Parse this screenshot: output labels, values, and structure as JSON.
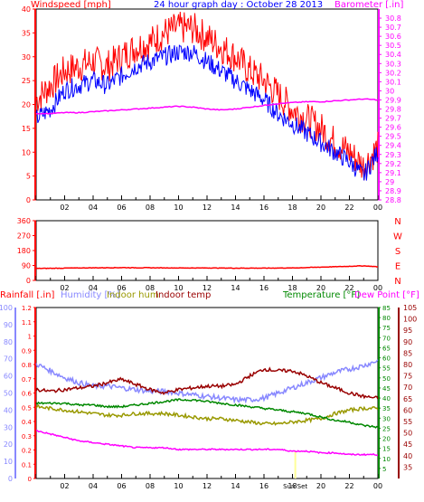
{
  "panel_top": {
    "title_left": "Windspeed [mph]",
    "title_center": "24 hour graph day : October 28 2013",
    "title_right": "Barometer [.in]",
    "left_color": "#ff0000",
    "center_color": "#0000ff",
    "right_color": "#ff00ff"
  },
  "panel_mid": {
    "right_labels": [
      "N",
      "W",
      "S",
      "E",
      "N"
    ],
    "color": "#ff0000"
  },
  "panel_bottom": {
    "rainfall": "Rainfall [.in]",
    "humidity": "Humidity [%]",
    "indoor_hum": "Indoor hum",
    "indoor_temp": "Indoor temp",
    "temperature": "Temperature [°F]",
    "dewpoint": "Dew Point [°F]",
    "colors": {
      "rainfall": "#ff0000",
      "humidity": "#8888ff",
      "indoor_hum": "#999900",
      "indoor_temp": "#990000",
      "temperature": "#008800",
      "dewpoint": "#ff00ff"
    },
    "event_label": "Sun Set"
  },
  "chart_data": [
    {
      "type": "line",
      "title": "24 hour graph day : October 28 2013",
      "xlabel": "",
      "ylabel": "Windspeed [mph]",
      "y2label": "Barometer [.in]",
      "x_ticks": [
        "02",
        "04",
        "06",
        "08",
        "10",
        "12",
        "14",
        "16",
        "18",
        "20",
        "22",
        "00"
      ],
      "ylim": [
        0,
        40
      ],
      "y_ticks": [
        "0",
        "5",
        "10",
        "15",
        "20",
        "25",
        "30",
        "35",
        "40"
      ],
      "y2lim": [
        28.8,
        30.9
      ],
      "y2_ticks": [
        "28.8",
        "28.9",
        "29",
        "29.1",
        "29.2",
        "29.3",
        "29.4",
        "29.5",
        "29.6",
        "29.7",
        "29.8",
        "29.9",
        "30",
        "30.1",
        "30.2",
        "30.3",
        "30.4",
        "30.5",
        "30.6",
        "30.7",
        "30.8"
      ],
      "hours": [
        0,
        1,
        2,
        3,
        4,
        5,
        6,
        7,
        8,
        9,
        10,
        11,
        12,
        13,
        14,
        15,
        16,
        17,
        18,
        19,
        20,
        21,
        22,
        23,
        24
      ],
      "series": [
        {
          "axis": "left",
          "color": "#ff0000",
          "values": [
            21,
            24,
            27,
            28,
            29,
            28,
            30,
            32,
            33,
            35,
            36,
            36,
            34,
            32,
            30,
            27,
            25,
            22,
            19,
            17,
            15,
            12,
            10,
            7,
            11
          ]
        },
        {
          "axis": "left",
          "color": "#0000ff",
          "values": [
            17,
            19,
            23,
            24,
            25,
            24,
            26,
            28,
            29,
            30,
            31,
            31,
            29,
            27,
            25,
            23,
            21,
            18,
            16,
            14,
            12,
            10,
            8,
            5,
            10
          ]
        },
        {
          "axis": "right",
          "color": "#ff00ff",
          "values": [
            29.75,
            29.75,
            29.76,
            29.76,
            29.77,
            29.78,
            29.79,
            29.8,
            29.81,
            29.82,
            29.83,
            29.82,
            29.8,
            29.79,
            29.8,
            29.82,
            29.84,
            29.86,
            29.87,
            29.88,
            29.88,
            29.89,
            29.9,
            29.91,
            29.9
          ]
        }
      ]
    },
    {
      "type": "line",
      "ylabel": "",
      "x_ticks": [
        "02",
        "04",
        "06",
        "08",
        "10",
        "12",
        "14",
        "16",
        "18",
        "20",
        "22",
        "00"
      ],
      "ylim": [
        0,
        360
      ],
      "y_ticks": [
        "0",
        "90",
        "180",
        "270",
        "360"
      ],
      "series": [
        {
          "color": "#ff0000",
          "hours": [
            0,
            2,
            4,
            6,
            8,
            10,
            12,
            14,
            16,
            18,
            20,
            22,
            23,
            24
          ],
          "values": [
            72,
            74,
            76,
            77,
            76,
            75,
            75,
            74,
            74,
            75,
            80,
            85,
            88,
            82
          ]
        }
      ]
    },
    {
      "type": "line",
      "x_ticks": [
        "02",
        "04",
        "06",
        "08",
        "10",
        "12",
        "14",
        "16",
        "18",
        "20",
        "22",
        "00"
      ],
      "x_event_label": "Sun Set",
      "rain_axis": {
        "ylim": [
          0,
          1.2
        ],
        "ticks": [
          "0",
          "0.1",
          "0.2",
          "0.3",
          "0.4",
          "0.5",
          "0.6",
          "0.7",
          "0.8",
          "0.9",
          "1",
          "1.1",
          "1.2"
        ]
      },
      "humidity_axis": {
        "ylim": [
          0,
          100
        ],
        "ticks": [
          "0",
          "10",
          "20",
          "30",
          "40",
          "50",
          "60",
          "70",
          "80",
          "90",
          "100"
        ]
      },
      "temperature_axis": {
        "ylim": [
          0,
          85
        ],
        "ticks": [
          "5",
          "10",
          "15",
          "20",
          "25",
          "30",
          "35",
          "40",
          "45",
          "50",
          "55",
          "60",
          "65",
          "70",
          "75",
          "80",
          "85"
        ]
      },
      "dewpoint_axis": {
        "ylim": [
          30,
          105
        ],
        "ticks": [
          "35",
          "40",
          "45",
          "50",
          "55",
          "60",
          "65",
          "70",
          "75",
          "80",
          "85",
          "90",
          "95",
          "100",
          "105"
        ]
      },
      "hours": [
        0,
        1,
        2,
        3,
        4,
        5,
        6,
        7,
        8,
        9,
        10,
        11,
        12,
        13,
        14,
        15,
        16,
        17,
        18,
        19,
        20,
        21,
        22,
        23,
        24
      ],
      "series": [
        {
          "name": "Humidity [%]",
          "axis": "humidity",
          "color": "#8888ff",
          "values": [
            67,
            63,
            59,
            56,
            54,
            54,
            53,
            52,
            51,
            51,
            50,
            49,
            48,
            47,
            46,
            46,
            47,
            50,
            53,
            56,
            59,
            62,
            64,
            66,
            69
          ]
        },
        {
          "name": "Indoor hum",
          "axis": "humidity",
          "color": "#999900",
          "values": [
            42,
            41,
            40,
            39,
            38,
            37,
            37,
            38,
            38,
            38,
            37,
            36,
            35,
            35,
            34,
            33,
            32,
            32,
            33,
            34,
            35,
            38,
            40,
            41,
            41
          ]
        },
        {
          "name": "Indoor temp",
          "axis": "humidity",
          "color": "#990000",
          "values": [
            52,
            51,
            52,
            53,
            54,
            56,
            58,
            55,
            52,
            50,
            52,
            53,
            54,
            54,
            55,
            60,
            64,
            63,
            63,
            60,
            56,
            53,
            50,
            48,
            47
          ]
        },
        {
          "name": "Temperature [°F]",
          "axis": "humidity",
          "color": "#008800",
          "values": [
            44,
            44,
            44,
            43,
            43,
            42,
            42,
            43,
            44,
            45,
            46,
            46,
            45,
            44,
            43,
            42,
            41,
            40,
            39,
            38,
            36,
            34,
            33,
            31,
            30
          ]
        },
        {
          "name": "Dew Point [°F]",
          "axis": "humidity",
          "color": "#ff00ff",
          "values": [
            28,
            26,
            24,
            22,
            21,
            20,
            19,
            18,
            18,
            18,
            17,
            17,
            17,
            17,
            17,
            17,
            17,
            17,
            16,
            16,
            15,
            15,
            14,
            14,
            14
          ]
        }
      ]
    }
  ]
}
